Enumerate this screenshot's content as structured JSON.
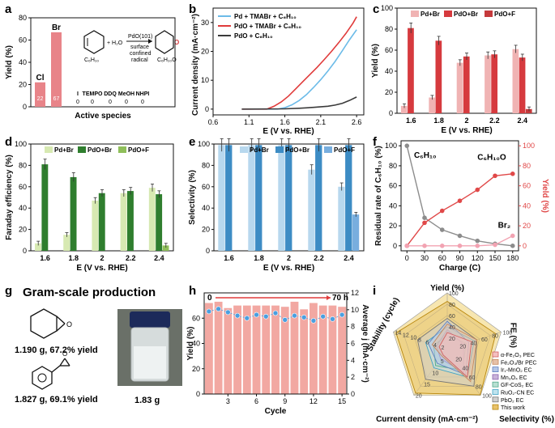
{
  "colors": {
    "pd_red_light": "#f0b3b3",
    "pdo_red": "#d63a3e",
    "pdo_red_dark": "#c53a3c",
    "pd_green_light": "#d7e9b2",
    "pdo_green": "#2f7e2e",
    "pdo_green_mid": "#8fbf5a",
    "pd_blue_light": "#b8d8ee",
    "pdo_blue": "#3d8cc4",
    "pdo_blue_mid": "#78aede",
    "bar_a": "#e88489",
    "bar_h": "#f2a8a2",
    "dots_h": "#4a9fe0",
    "line_f_grey": "#8c8c8c",
    "line_f_red": "#e04848",
    "line_f_pink": "#f2a3b2",
    "line_b_blue": "#6cbbe8",
    "line_b_red": "#e03b3b",
    "line_b_dark": "#3a3a3a"
  },
  "panels": {
    "a": {
      "letter": "a",
      "ylabel": "Yield (%)",
      "xlabel": "Active species",
      "scheme": {
        "reactant": "C₆H₁₀",
        "product": "C₆H₁₀O",
        "plus_water": "+ H₂O",
        "catalyst": "PdO(101)",
        "cond1": "surface",
        "cond2": "confined",
        "cond3": "radical"
      }
    },
    "b": {
      "letter": "b",
      "ylabel": "Current density (mA·cm⁻²)",
      "xlabel": "E (V vs. RHE)"
    },
    "c": {
      "letter": "c",
      "ylabel": "Yield (%)",
      "xlabel": "E (V vs. RHE)"
    },
    "d": {
      "letter": "d",
      "ylabel": "Faraday efficiency (%)",
      "xlabel": "E (V vs. RHE)"
    },
    "e": {
      "letter": "e",
      "ylabel": "Selectivity (%)",
      "xlabel": "E (V vs. RHE)"
    },
    "f": {
      "letter": "f",
      "ylabel_left": "Residual rate of C₆H₁₀ (%)",
      "ylabel_right": "Yield (%)",
      "xlabel": "Charge (C)",
      "ann_c6h10": "C₆H₁₀",
      "ann_c6h10o": "C₆H₁₀O",
      "ann_br2": "Br₂"
    },
    "g": {
      "letter": "g",
      "title": "Gram-scale production",
      "item1": "1.190 g, 67.2% yield",
      "item2": "1.827 g, 69.1% yield",
      "vial_mass": "1.83 g"
    },
    "h": {
      "letter": "h",
      "ylabel_left": "Yield (%)",
      "ylabel_right": "Average j (mA·cm⁻²)",
      "xlabel": "Cycle",
      "time_start": "0",
      "time_end": "70 h"
    },
    "i": {
      "letter": "i",
      "axis_yield": "Yield (%)",
      "axis_fe": "FE (%)",
      "axis_sel": "Selectivity (%)",
      "axis_cd": "Current density (mA·cm⁻²)",
      "axis_stab": "Stability (cycle)",
      "legend": [
        "α-Fe₂O₃ PEC",
        "Fe₂O₃/Br PEC",
        "Ir₁-MnO₂ EC",
        "Mn₃O₄ EC",
        "GF-CoS₂ EC",
        "RuO₂-CN EC",
        "PbO₂ EC",
        "This work"
      ]
    }
  },
  "chart_data": [
    {
      "id": "a",
      "type": "bar",
      "title": "",
      "xlabel": "Active species",
      "ylabel": "Yield (%)",
      "categories": [
        "Cl",
        "Br",
        "I",
        "TEMPO",
        "DDQ",
        "MeOH",
        "NHPI"
      ],
      "values": [
        22,
        67,
        0,
        0,
        0,
        0,
        0
      ],
      "ylim": [
        0,
        80
      ],
      "yticks": [
        0,
        20,
        40,
        60,
        80
      ]
    },
    {
      "id": "b",
      "type": "line",
      "xlabel": "E (V vs. RHE)",
      "ylabel": "Current density (mA·cm⁻²)",
      "xlim": [
        0.6,
        2.7
      ],
      "ylim": [
        -2,
        35
      ],
      "xticks": [
        0.6,
        1.1,
        1.6,
        2.1,
        2.6
      ],
      "yticks": [
        0,
        10,
        20,
        30
      ],
      "legend_position": "top-left",
      "series": [
        {
          "name": "Pd + TMABr + C₆H₁₀",
          "x": [
            1.0,
            1.5,
            1.6,
            1.7,
            1.8,
            1.9,
            2.0,
            2.1,
            2.2,
            2.3,
            2.4,
            2.5,
            2.6
          ],
          "y": [
            0,
            0,
            0.5,
            1.5,
            3,
            5,
            7.5,
            10.2,
            13.2,
            16.5,
            20.2,
            24,
            27.5
          ]
        },
        {
          "name": "PdO + TMABr + C₆H₁₀",
          "x": [
            1.0,
            1.35,
            1.45,
            1.55,
            1.65,
            1.75,
            1.85,
            1.95,
            2.05,
            2.15,
            2.25,
            2.35,
            2.45,
            2.55,
            2.6
          ],
          "y": [
            0,
            0,
            1,
            2.5,
            4.5,
            7,
            9.5,
            12,
            14.5,
            17.2,
            20,
            23,
            26.2,
            29.8,
            32
          ]
        },
        {
          "name": "PdO + C₆H₁₀",
          "x": [
            1.0,
            1.6,
            1.8,
            2.0,
            2.2,
            2.3,
            2.4,
            2.5,
            2.6
          ],
          "y": [
            0,
            0.1,
            0.3,
            0.6,
            1,
            1.4,
            2,
            3,
            4.2
          ]
        }
      ]
    },
    {
      "id": "c",
      "type": "bar",
      "xlabel": "E (V vs. RHE)",
      "ylabel": "Yield (%)",
      "ylim": [
        0,
        100
      ],
      "yticks": [
        0,
        20,
        40,
        60,
        80,
        100
      ],
      "categories": [
        "1.6",
        "1.8",
        "2",
        "2.2",
        "2.4"
      ],
      "series": [
        {
          "name": "Pd+Br",
          "values": [
            7,
            15,
            48,
            55,
            61
          ]
        },
        {
          "name": "PdO+Br",
          "values": [
            81,
            69,
            54,
            56,
            53
          ]
        },
        {
          "name": "PdO+F",
          "values": [
            0,
            0,
            0,
            0,
            4
          ]
        }
      ]
    },
    {
      "id": "d",
      "type": "bar",
      "xlabel": "E (V vs. RHE)",
      "ylabel": "Faraday efficiency (%)",
      "ylim": [
        0,
        100
      ],
      "yticks": [
        0,
        20,
        40,
        60,
        80,
        100
      ],
      "categories": [
        "1.6",
        "1.8",
        "2",
        "2.2",
        "2.4"
      ],
      "series": [
        {
          "name": "Pd+Br",
          "values": [
            7,
            15,
            47,
            54,
            59
          ]
        },
        {
          "name": "PdO+Br",
          "values": [
            81,
            69,
            54,
            56,
            53
          ]
        },
        {
          "name": "PdO+F",
          "values": [
            0,
            0,
            0,
            0,
            5
          ]
        }
      ]
    },
    {
      "id": "e",
      "type": "bar",
      "xlabel": "E (V vs. RHE)",
      "ylabel": "Selectivity (%)",
      "ylim": [
        0,
        100
      ],
      "yticks": [
        0,
        20,
        40,
        60,
        80,
        100
      ],
      "categories": [
        "1.6",
        "1.8",
        "2",
        "2.2",
        "2.4"
      ],
      "series": [
        {
          "name": "Pd+Br",
          "values": [
            99,
            99,
            99,
            76,
            60
          ]
        },
        {
          "name": "PdO+Br",
          "values": [
            99,
            99,
            99,
            99,
            99
          ]
        },
        {
          "name": "PdO+F",
          "values": [
            0,
            0,
            0,
            0,
            34
          ]
        }
      ]
    },
    {
      "id": "f",
      "type": "line",
      "xlabel": "Charge (C)",
      "ylabel": "Residual rate of C₆H₁₀ (%)",
      "ylabel_right": "Yield (%)",
      "xticks": [
        0,
        30,
        60,
        90,
        120,
        150,
        180
      ],
      "ylim": [
        0,
        100
      ],
      "yticks": [
        0,
        20,
        40,
        60,
        80,
        100
      ],
      "series": [
        {
          "name": "C₆H₁₀",
          "axis": "left",
          "x": [
            0,
            30,
            60,
            90,
            120,
            150,
            180
          ],
          "y": [
            100,
            28,
            16,
            10,
            5,
            2,
            0
          ]
        },
        {
          "name": "C₆H₁₀O",
          "axis": "right",
          "x": [
            0,
            30,
            60,
            90,
            120,
            150,
            180
          ],
          "y": [
            0,
            23,
            35,
            45,
            56,
            70,
            72
          ]
        },
        {
          "name": "Br₂",
          "axis": "right",
          "x": [
            0,
            30,
            60,
            90,
            120,
            150,
            180
          ],
          "y": [
            0,
            0,
            0,
            0,
            0,
            1,
            10
          ]
        }
      ]
    },
    {
      "id": "h",
      "type": "bar",
      "xlabel": "Cycle",
      "ylabel": "Yield (%)",
      "ylabel_right": "Average j (mA·cm⁻²)",
      "x": [
        1,
        2,
        3,
        4,
        5,
        6,
        7,
        8,
        9,
        10,
        11,
        12,
        13,
        14,
        15
      ],
      "xticks": [
        3,
        6,
        9,
        12,
        15
      ],
      "ylim": [
        0,
        80
      ],
      "yticks": [
        0,
        20,
        40,
        60
      ],
      "ylim_right": [
        0,
        12
      ],
      "yticks_right": [
        0,
        2,
        4,
        6,
        8,
        10,
        12
      ],
      "series": [
        {
          "name": "Yield",
          "values": [
            72,
            73,
            68,
            70,
            70,
            70,
            70,
            70,
            69,
            73,
            67,
            72,
            70,
            70,
            69
          ]
        },
        {
          "name": "Average j",
          "values": [
            9.8,
            10.1,
            9.7,
            9.3,
            9.0,
            9.4,
            9.2,
            9.6,
            8.8,
            9.3,
            9.1,
            8.7,
            9.2,
            8.9,
            9.4
          ]
        }
      ]
    },
    {
      "id": "i",
      "type": "radar",
      "axes": [
        "Yield (%)",
        "FE (%)",
        "Selectivity (%)",
        "Current density (mA·cm⁻²)",
        "Stability (cycle)"
      ],
      "axis_ticks": {
        "Yield (%)": [
          20,
          40,
          60,
          80,
          100
        ],
        "FE (%)": [
          20,
          40,
          60,
          80,
          100
        ],
        "Selectivity (%)": [
          20,
          40,
          60,
          80,
          100
        ],
        "Current density (mA·cm⁻²)": [
          5,
          10,
          15,
          20
        ],
        "Stability (cycle)": [
          2,
          4,
          6,
          8,
          10,
          12,
          14
        ]
      },
      "series": [
        {
          "name": "α-Fe₂O₃ PEC",
          "values": [
            0.3,
            0.45,
            0.6,
            0.12,
            0.15
          ]
        },
        {
          "name": "Fe₂O₃/Br PEC",
          "values": [
            0.45,
            0.55,
            0.7,
            0.15,
            0.28
          ]
        },
        {
          "name": "Ir₁-MnO₂ EC",
          "values": [
            0.5,
            0.4,
            0.55,
            0.3,
            0.35
          ]
        },
        {
          "name": "Mn₃O₄ EC",
          "values": [
            0.35,
            0.3,
            0.5,
            0.2,
            0.2
          ]
        },
        {
          "name": "GF-CoS₂ EC",
          "values": [
            0.25,
            0.35,
            0.45,
            0.35,
            0.25
          ]
        },
        {
          "name": "RuO₂-CN EC",
          "values": [
            0.4,
            0.5,
            0.6,
            0.4,
            0.4
          ]
        },
        {
          "name": "PbO₂ EC",
          "values": [
            0.55,
            0.55,
            0.8,
            0.65,
            0.55
          ]
        },
        {
          "name": "This work",
          "values": [
            0.85,
            0.9,
            0.99,
            0.95,
            0.95
          ]
        }
      ]
    }
  ]
}
